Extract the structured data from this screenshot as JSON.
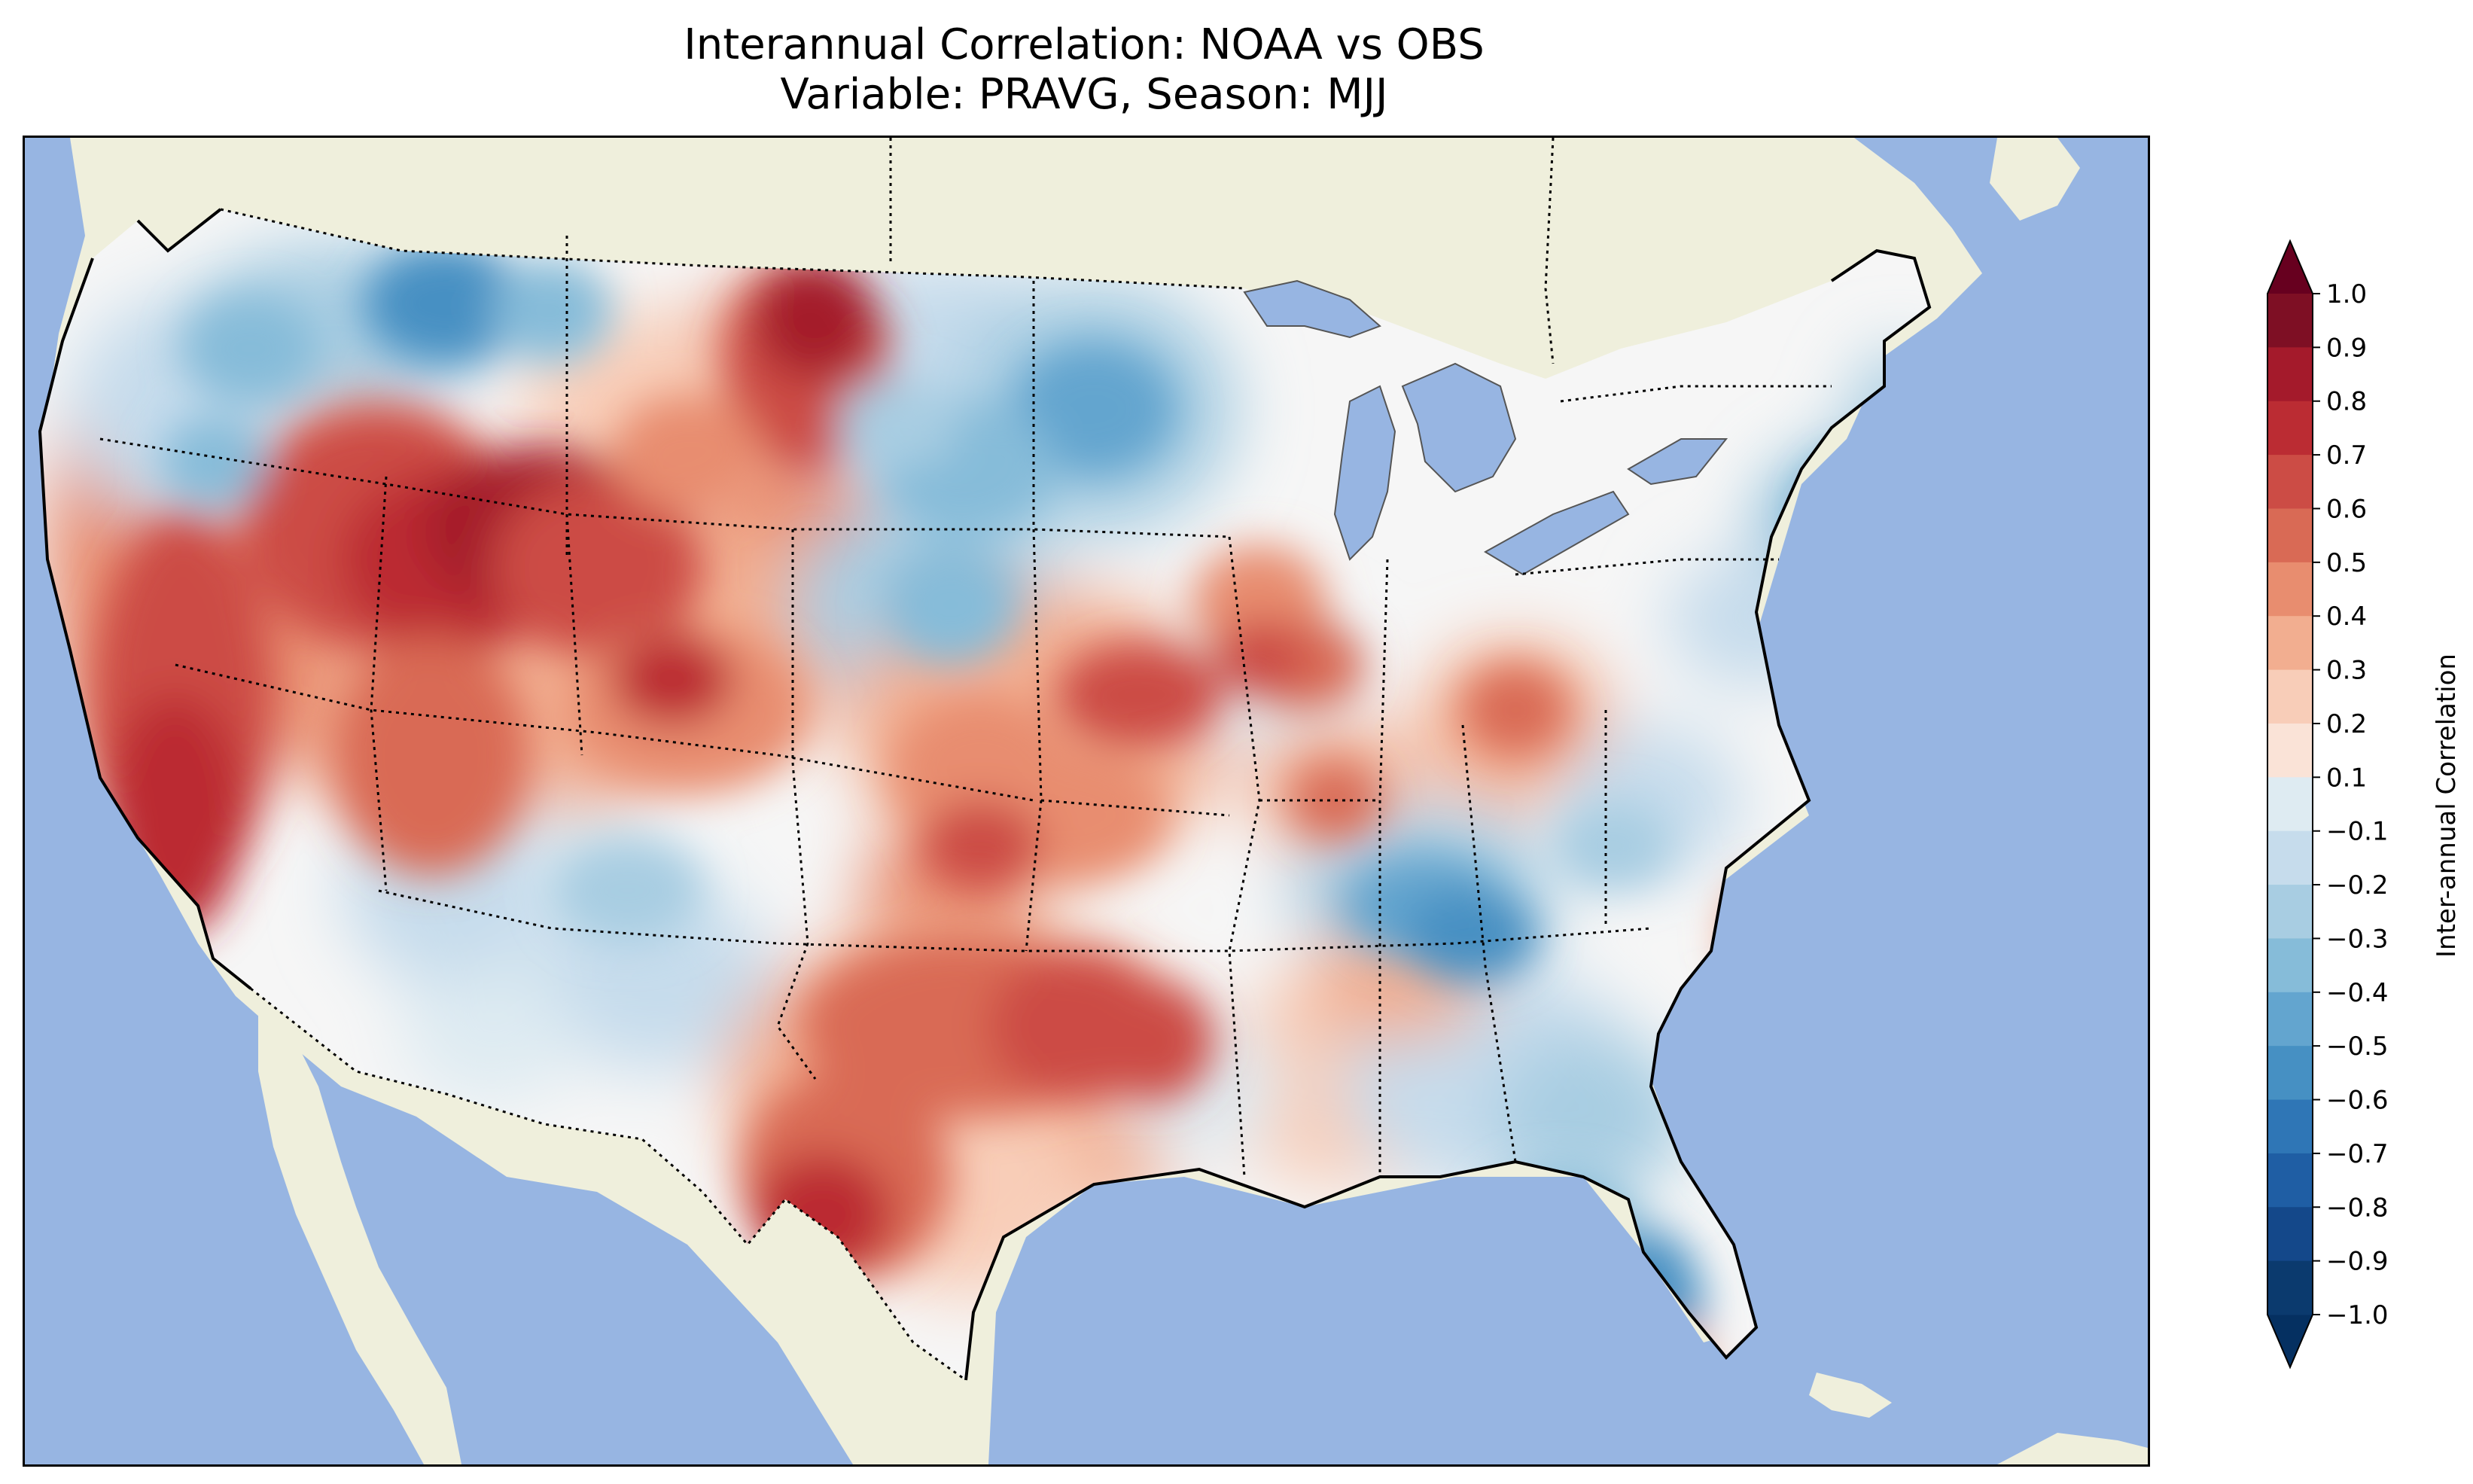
{
  "title": {
    "line1": "Interannual Correlation: NOAA vs OBS",
    "line2": "Variable: PRAVG, Season: MJJ"
  },
  "colors": {
    "ocean": "#97b5e2",
    "land": "#efefdc",
    "coast": "#000000",
    "border": "#000000"
  },
  "colorbar": {
    "label": "Inter-annual Correlation",
    "ticks": [
      "1.0",
      "0.9",
      "0.8",
      "0.7",
      "0.6",
      "0.5",
      "0.4",
      "0.3",
      "0.2",
      "0.1",
      "−0.1",
      "−0.2",
      "−0.3",
      "−0.4",
      "−0.5",
      "−0.6",
      "−0.7",
      "−0.8",
      "−0.9",
      "−1.0"
    ],
    "levels": [
      1.0,
      0.9,
      0.8,
      0.7,
      0.6,
      0.5,
      0.4,
      0.3,
      0.2,
      0.1,
      -0.1,
      -0.2,
      -0.3,
      -0.4,
      -0.5,
      -0.6,
      -0.7,
      -0.8,
      -0.9,
      -1.0
    ],
    "band_colors": [
      "#7e0f24",
      "#a41a2b",
      "#bb2c33",
      "#cc4c45",
      "#d96a55",
      "#e88d6f",
      "#f2ae90",
      "#f8cdb8",
      "#fae3d7",
      "#f6f6f6",
      "#deebf2",
      "#c6dcec",
      "#a8cde2",
      "#86bcd9",
      "#63a5cf",
      "#4690c3",
      "#2f76b6",
      "#1f5ea4",
      "#14488a",
      "#0b3a6e"
    ],
    "extend_max_color": "#67001f",
    "extend_min_color": "#053061"
  },
  "chart_data": {
    "type": "heatmap",
    "title": "Interannual Correlation: NOAA vs OBS\nVariable: PRAVG, Season: MJJ",
    "colorbar_label": "Inter-annual Correlation",
    "value_range": [
      -1.0,
      1.0
    ],
    "extend": "both"
  }
}
